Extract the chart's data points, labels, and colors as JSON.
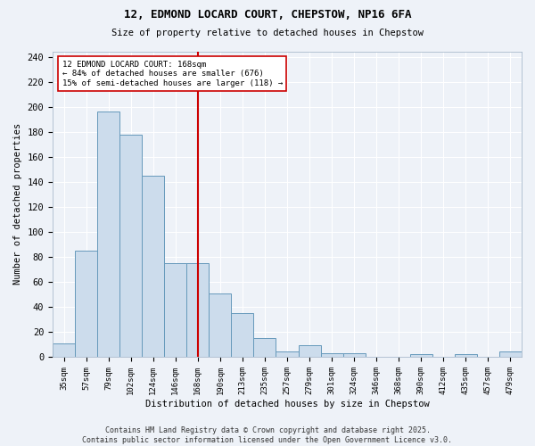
{
  "title": "12, EDMOND LOCARD COURT, CHEPSTOW, NP16 6FA",
  "subtitle": "Size of property relative to detached houses in Chepstow",
  "xlabel": "Distribution of detached houses by size in Chepstow",
  "ylabel": "Number of detached properties",
  "bar_color": "#ccdcec",
  "bar_edge_color": "#6699bb",
  "background_color": "#eef2f8",
  "categories": [
    "35sqm",
    "57sqm",
    "79sqm",
    "102sqm",
    "124sqm",
    "146sqm",
    "168sqm",
    "190sqm",
    "213sqm",
    "235sqm",
    "257sqm",
    "279sqm",
    "301sqm",
    "324sqm",
    "346sqm",
    "368sqm",
    "390sqm",
    "412sqm",
    "435sqm",
    "457sqm",
    "479sqm"
  ],
  "values": [
    11,
    85,
    197,
    178,
    145,
    75,
    75,
    51,
    35,
    15,
    4,
    9,
    3,
    3,
    0,
    0,
    2,
    0,
    2,
    0,
    4
  ],
  "vline_x_idx": 6,
  "vline_color": "#cc0000",
  "annotation_text": "12 EDMOND LOCARD COURT: 168sqm\n← 84% of detached houses are smaller (676)\n15% of semi-detached houses are larger (118) →",
  "annotation_box_color": "#ffffff",
  "annotation_box_edge_color": "#cc0000",
  "footer_text": "Contains HM Land Registry data © Crown copyright and database right 2025.\nContains public sector information licensed under the Open Government Licence v3.0.",
  "ylim": [
    0,
    245
  ],
  "yticks": [
    0,
    20,
    40,
    60,
    80,
    100,
    120,
    140,
    160,
    180,
    200,
    220,
    240
  ]
}
